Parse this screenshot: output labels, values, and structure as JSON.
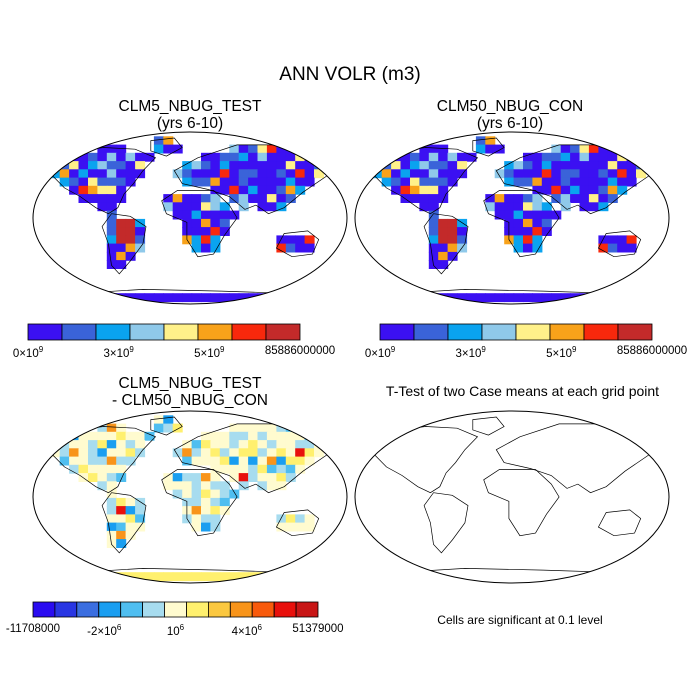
{
  "main_title": "ANN VOLR (m3)",
  "panels": [
    {
      "title_line1": "CLM5_NBUG_TEST",
      "title_line2": "(yrs 6-10)"
    },
    {
      "title_line1": "CLM50_NBUG_CON",
      "title_line2": "(yrs 6-10)"
    },
    {
      "title_line1": "CLM5_NBUG_TEST",
      "title_line2": "- CLM50_NBUG_CON"
    },
    {
      "title_line1": "T-Test of two Case means at each grid point",
      "title_line2": ""
    }
  ],
  "colorbar_abs": {
    "colors": [
      "#3b10f2",
      "#3a63d9",
      "#0aa3ef",
      "#8fc9ea",
      "#fff18a",
      "#f8a21a",
      "#f8280c",
      "#c32a2a"
    ],
    "labels": [
      {
        "mant": "0×10",
        "exp": "9"
      },
      {
        "mant": "3×10",
        "exp": "9"
      },
      {
        "mant": "5×10",
        "exp": "9"
      },
      {
        "mant": "85886000000",
        "exp": ""
      }
    ]
  },
  "colorbar_diff": {
    "colors": [
      "#2a0cf0",
      "#2936e3",
      "#3b6ee0",
      "#1a9ef0",
      "#4fbef0",
      "#a7dcef",
      "#fffbcf",
      "#fff06e",
      "#fbc840",
      "#f8941a",
      "#f85a0c",
      "#e8100c",
      "#c81616"
    ],
    "labels": [
      {
        "mant": "-11708000",
        "exp": ""
      },
      {
        "mant": "-2×10",
        "exp": "6"
      },
      {
        "mant": "10",
        "exp": "6"
      },
      {
        "mant": "4×10",
        "exp": "6"
      },
      {
        "mant": "51379000",
        "exp": ""
      }
    ]
  },
  "ttest_note": "Cells are significant at 0.1 level"
}
